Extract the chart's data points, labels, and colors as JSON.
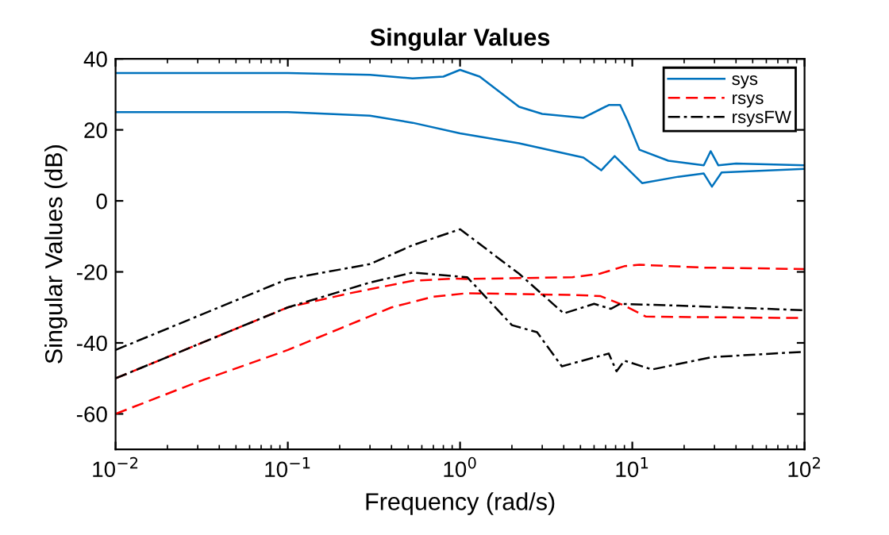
{
  "chart_data": {
    "type": "line",
    "title": "Singular Values",
    "xlabel": "Frequency (rad/s)",
    "ylabel": "Singular Values (dB)",
    "log": "x",
    "grid": false,
    "legend": "top right",
    "xlim": [
      0.01,
      100
    ],
    "xticks": [
      {
        "value": 0.01,
        "label": "10$^{−2}$"
      },
      {
        "value": 0.1,
        "label": "10$^{−1}$"
      },
      {
        "value": 1,
        "label": "10$^{0}$"
      },
      {
        "value": 10,
        "label": "10$^{1}$"
      },
      {
        "value": 100,
        "label": "10$^{2}$"
      }
    ],
    "ylim": [
      -70,
      40
    ],
    "yticks": [
      -60,
      -40,
      -20,
      0,
      20,
      40
    ],
    "series": [
      {
        "name": "sys",
        "color": "#0072bd",
        "line_style": "solid",
        "x": [
          0.01,
          0.1,
          0.3,
          0.53,
          0.8,
          1.0,
          1.3,
          2.2,
          3,
          5.2,
          7.3,
          8.5,
          9.4,
          11,
          16.2,
          26,
          28.5,
          31.6,
          40,
          100
        ],
        "values": [
          36,
          36,
          35.5,
          34.5,
          35,
          36.9,
          35,
          26.5,
          24.5,
          23.4,
          27,
          27,
          22.5,
          14.4,
          11.3,
          10,
          14,
          10,
          10.5,
          10
        ]
      },
      {
        "color": "#0072bd",
        "line_style": "solid",
        "x": [
          0.01,
          0.1,
          0.3,
          0.53,
          1.0,
          2.2,
          5.2,
          6.6,
          7.9,
          11.4,
          18.5,
          26,
          29,
          33,
          100
        ],
        "values": [
          25,
          25,
          24,
          22,
          19,
          16.2,
          12.2,
          8.6,
          12.6,
          5,
          6.8,
          7.7,
          4,
          8,
          9
        ]
      },
      {
        "name": "rsys",
        "color": "#ff0000",
        "line_style": "dashed",
        "x": [
          0.01,
          0.1,
          0.23,
          0.53,
          0.9,
          1.1,
          4.5,
          6.5,
          9,
          11,
          26,
          100
        ],
        "values": [
          -50,
          -30,
          -26,
          -22.5,
          -21.9,
          -22,
          -21.5,
          -20.5,
          -18.4,
          -18,
          -18.8,
          -19.2
        ]
      },
      {
        "color": "#ff0000",
        "line_style": "dashed",
        "x": [
          0.01,
          0.03,
          0.1,
          0.2,
          0.4,
          0.7,
          1.1,
          4.5,
          6.5,
          9,
          12,
          100
        ],
        "values": [
          -60,
          -51,
          -42,
          -36,
          -30,
          -27,
          -26,
          -26.5,
          -26.8,
          -29.5,
          -32.6,
          -33
        ]
      },
      {
        "name": "rsysFW",
        "color": "#000000",
        "line_style": "dashdot",
        "x": [
          0.01,
          0.1,
          0.3,
          0.53,
          1.0,
          2.2,
          4.0,
          6,
          7.5,
          8.5,
          18.5,
          100
        ],
        "values": [
          -42,
          -22,
          -17.8,
          -12.5,
          -8,
          -20.5,
          -31.7,
          -29,
          -30.4,
          -29,
          -29.5,
          -30.8
        ]
      },
      {
        "color": "#000000",
        "line_style": "dashdot",
        "x": [
          0.01,
          0.1,
          0.3,
          0.53,
          1.1,
          2.0,
          2.8,
          3.9,
          7.3,
          8.1,
          9,
          13,
          29,
          100
        ],
        "values": [
          -50,
          -30,
          -23,
          -20.2,
          -21.5,
          -35,
          -37,
          -46.6,
          -43,
          -48,
          -45,
          -47.5,
          -44,
          -42.5
        ]
      }
    ]
  }
}
